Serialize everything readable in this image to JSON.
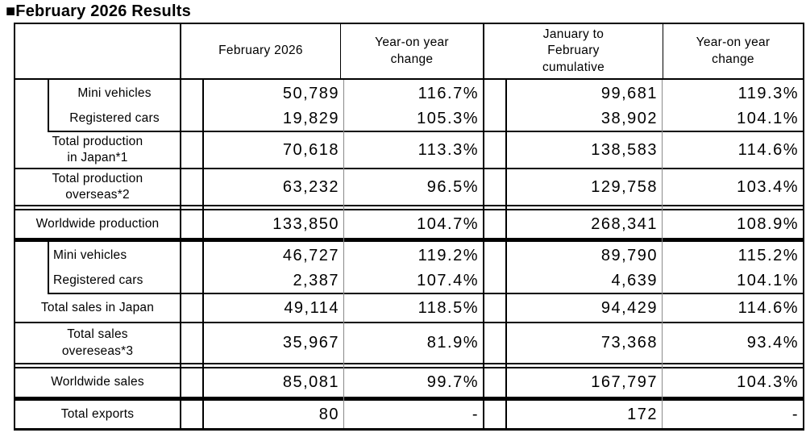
{
  "title": "■February 2026 Results",
  "colors": {
    "border": "#000000",
    "light_divider": "#8a8a8a",
    "background": "#ffffff",
    "text": "#000000"
  },
  "table": {
    "header": {
      "blank": "",
      "february": "February 2026",
      "yoy1": "Year-on year\nchange",
      "cumulative": "January to\nFebruary\ncumulative",
      "yoy2": "Year-on year\nchange"
    },
    "rows": [
      {
        "label": "Mini vehicles",
        "feb": "50,789",
        "yoy": "116.7%",
        "cum": "99,681",
        "cum_yoy": "119.3%"
      },
      {
        "label": "Registered cars",
        "feb": "19,829",
        "yoy": "105.3%",
        "cum": "38,902",
        "cum_yoy": "104.1%"
      },
      {
        "label": "Total production\nin Japan*1",
        "feb": "70,618",
        "yoy": "113.3%",
        "cum": "138,583",
        "cum_yoy": "114.6%"
      },
      {
        "label": "Total production\noverseas*2",
        "feb": "63,232",
        "yoy": "96.5%",
        "cum": "129,758",
        "cum_yoy": "103.4%"
      },
      {
        "label": "Worldwide production",
        "feb": "133,850",
        "yoy": "104.7%",
        "cum": "268,341",
        "cum_yoy": "108.9%"
      },
      {
        "label": "Mini vehicles",
        "feb": "46,727",
        "yoy": "119.2%",
        "cum": "89,790",
        "cum_yoy": "115.2%"
      },
      {
        "label": "Registered cars",
        "feb": "2,387",
        "yoy": "107.4%",
        "cum": "4,639",
        "cum_yoy": "104.1%"
      },
      {
        "label": "Total sales in Japan",
        "feb": "49,114",
        "yoy": "118.5%",
        "cum": "94,429",
        "cum_yoy": "114.6%"
      },
      {
        "label": "Total sales\novereseas*3",
        "feb": "35,967",
        "yoy": "81.9%",
        "cum": "73,368",
        "cum_yoy": "93.4%"
      },
      {
        "label": "Worldwide sales",
        "feb": "85,081",
        "yoy": "99.7%",
        "cum": "167,797",
        "cum_yoy": "104.3%"
      },
      {
        "label": "Total exports",
        "feb": "80",
        "yoy": "-",
        "cum": "172",
        "cum_yoy": "-"
      }
    ]
  }
}
